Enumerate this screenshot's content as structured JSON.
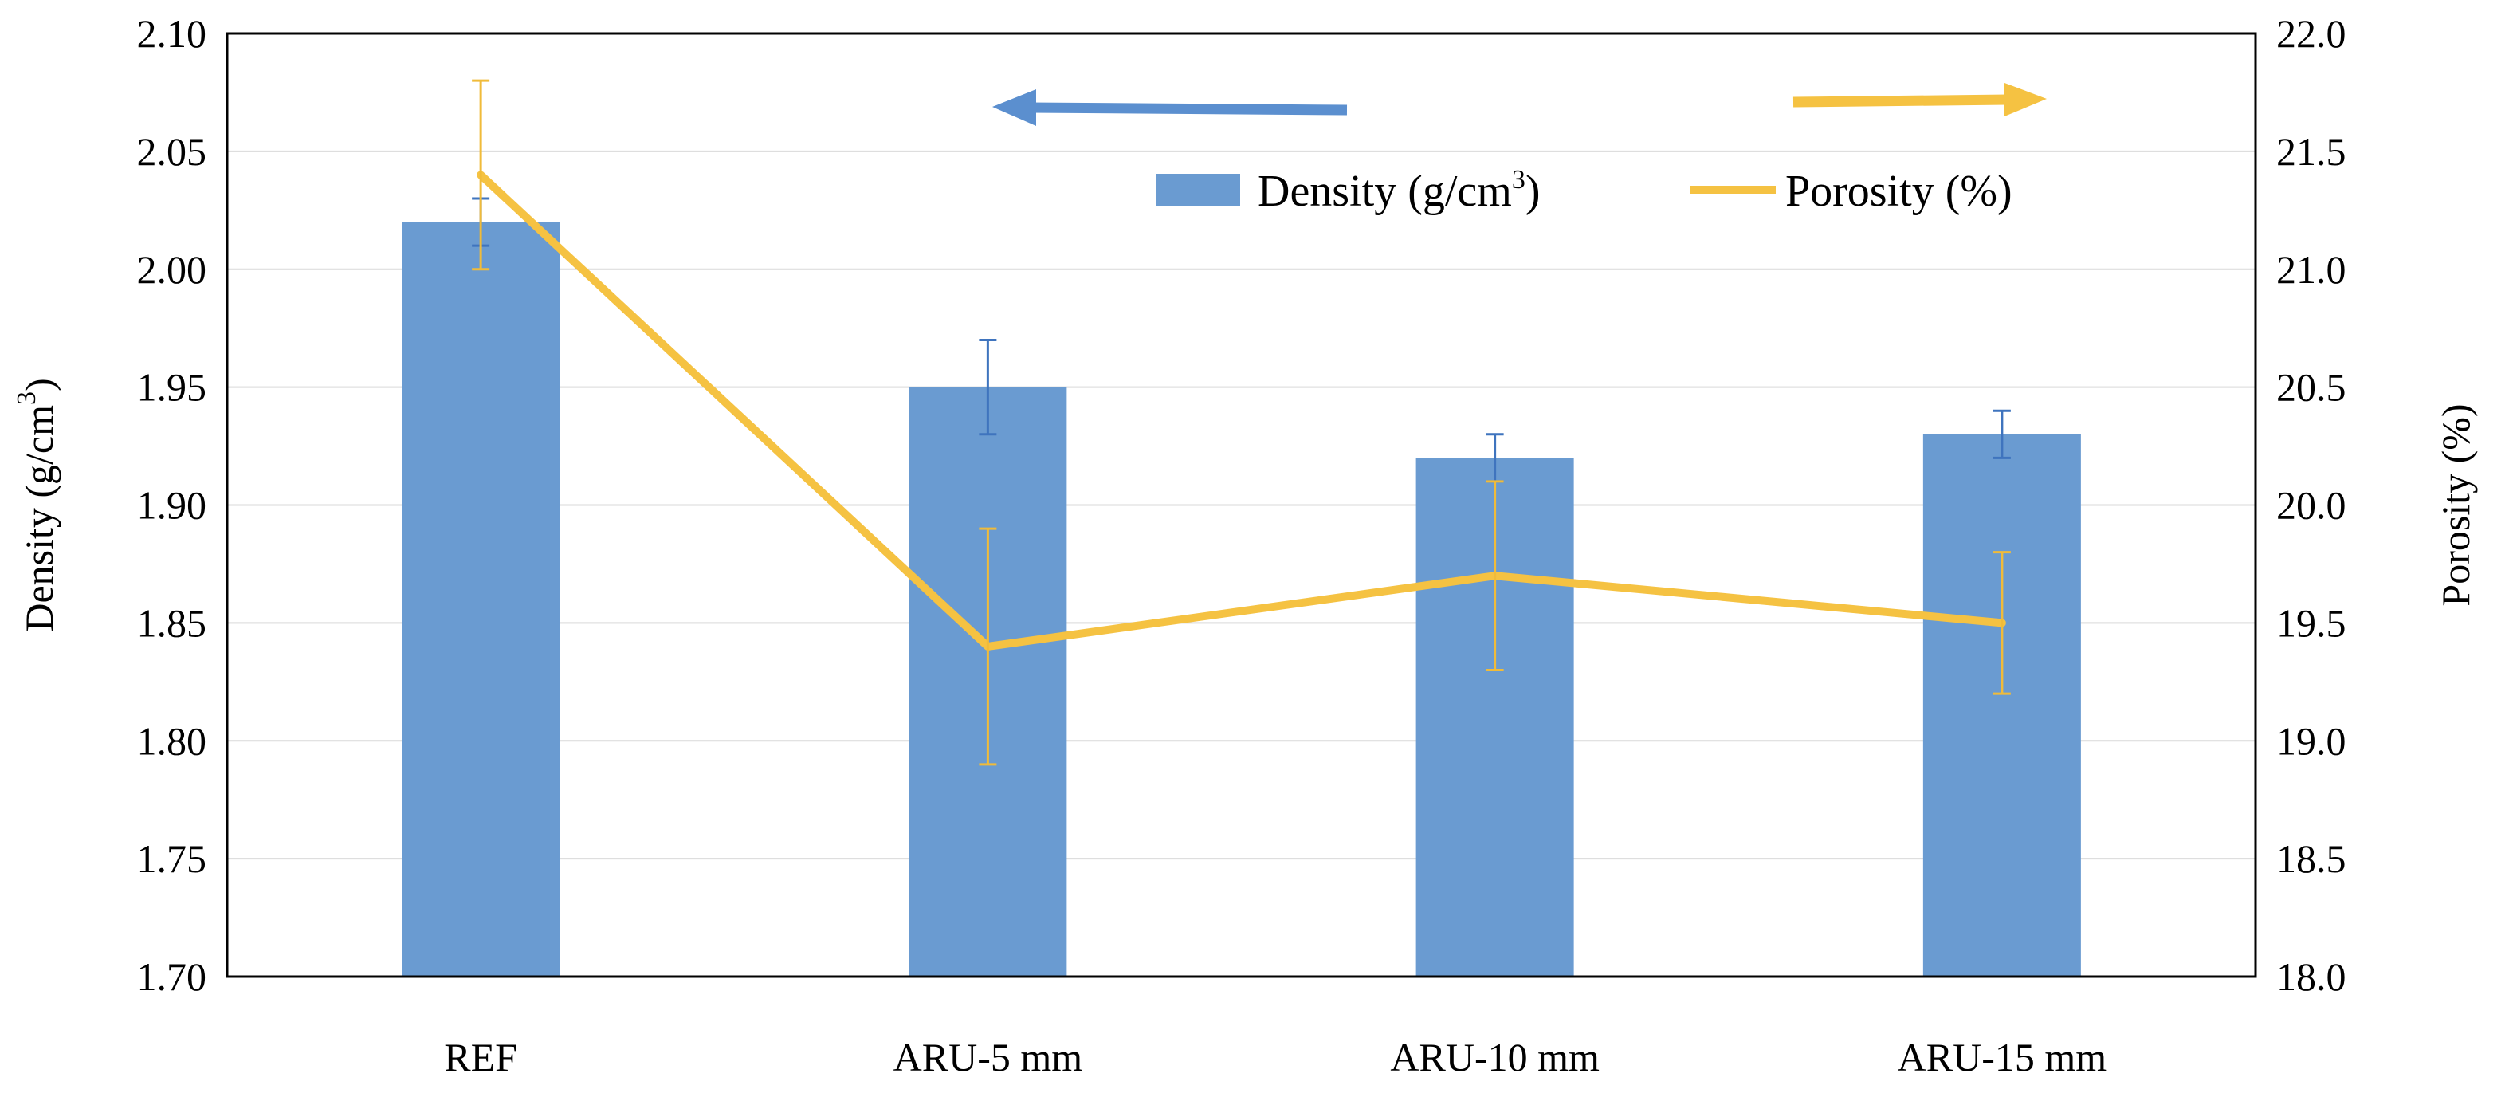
{
  "chart_data": {
    "type": "bar",
    "categories": [
      "REF",
      "ARU-5 mm",
      "ARU-10 mm",
      "ARU-15 mm"
    ],
    "series": [
      {
        "name": "Density (g/cm3)",
        "type": "bar",
        "axis": "left",
        "values": [
          2.02,
          1.95,
          1.92,
          1.93
        ],
        "errors": [
          0.01,
          0.02,
          0.01,
          0.01
        ],
        "color": "#6a9bd1"
      },
      {
        "name": "Porosity (%)",
        "type": "line",
        "axis": "right",
        "values": [
          21.4,
          19.4,
          19.7,
          19.5
        ],
        "errors": [
          0.4,
          0.5,
          0.4,
          0.3
        ],
        "color": "#f5c242"
      }
    ],
    "ylabel": "Density (g/cm3)",
    "y2label": "Porosity (%)",
    "ylim": [
      1.7,
      2.1
    ],
    "y2lim": [
      18.0,
      22.0
    ],
    "yticks": [
      "1.70",
      "1.75",
      "1.80",
      "1.85",
      "1.90",
      "1.95",
      "2.00",
      "2.05",
      "2.10"
    ],
    "y2ticks": [
      "18.0",
      "18.5",
      "19.0",
      "19.5",
      "20.0",
      "20.5",
      "21.0",
      "21.5",
      "22.0"
    ],
    "grid": true,
    "legend_position": "top-right",
    "annotations": [
      {
        "kind": "arrow",
        "direction": "left",
        "color": "#5b8fcf",
        "meaning": "density-left-axis"
      },
      {
        "kind": "arrow",
        "direction": "right",
        "color": "#f5c242",
        "meaning": "porosity-right-axis"
      }
    ]
  }
}
